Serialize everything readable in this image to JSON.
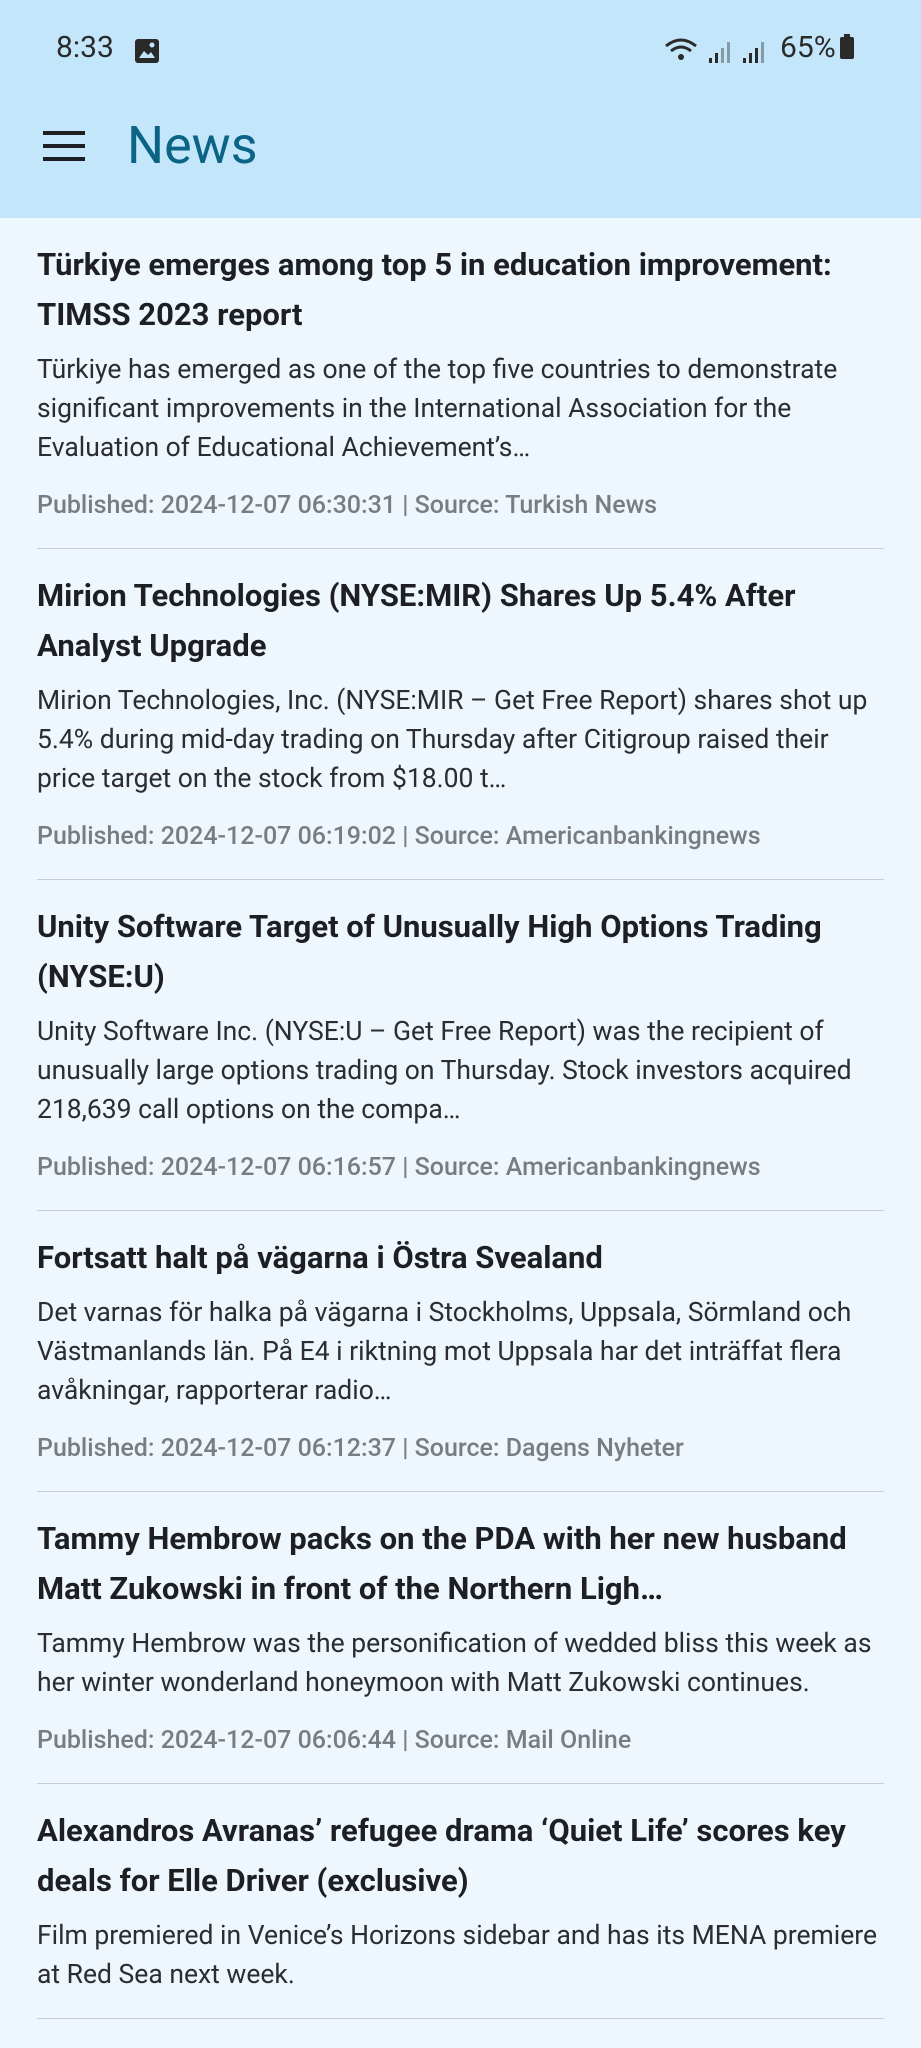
{
  "status_bar": {
    "time": "8:33",
    "battery": "65%"
  },
  "app_bar": {
    "title": "News"
  },
  "articles": [
    {
      "title": "Türkiye emerges among top 5 in education improvement: TIMSS 2023 report",
      "description": "Türkiye has emerged as one of the top five countries to demonstrate significant improvements in the International Association for the Evaluation of Educational Achievement’s…",
      "meta": "Published: 2024-12-07 06:30:31 | Source: Turkish News"
    },
    {
      "title": "Mirion Technologies (NYSE:MIR) Shares Up 5.4% After Analyst Upgrade",
      "description": "Mirion Technologies, Inc. (NYSE:MIR – Get Free Report) shares shot up 5.4% during mid-day trading on Thursday after Citigroup raised their price target on the stock from $18.00 t…",
      "meta": "Published: 2024-12-07 06:19:02 | Source: Americanbankingnews"
    },
    {
      "title": "Unity Software Target of Unusually High Options Trading (NYSE:U)",
      "description": "Unity Software Inc. (NYSE:U – Get Free Report) was the recipient of unusually large options trading on Thursday. Stock investors acquired 218,639 call options on the compa…",
      "meta": "Published: 2024-12-07 06:16:57 | Source: Americanbankingnews"
    },
    {
      "title": "Fortsatt halt på vägarna i Östra Svealand",
      "description": "Det varnas för halka på vägarna i Stockholms, Uppsala, Sörmland och Västmanlands län. På E4 i riktning mot Uppsala har det inträffat flera avåkningar, rapporterar radio…",
      "meta": "Published: 2024-12-07 06:12:37 | Source: Dagens Nyheter"
    },
    {
      "title": "Tammy Hembrow packs on the PDA with her new husband Matt Zukowski in front of the Northern Ligh…",
      "description": "Tammy Hembrow was the personification of wedded bliss this week as her winter wonderland honeymoon with Matt Zukowski continues.",
      "meta": "Published: 2024-12-07 06:06:44 | Source: Mail Online"
    },
    {
      "title": "Alexandros Avranas’ refugee drama ‘Quiet Life’ scores key deals for Elle Driver (exclusive)",
      "description": "Film premiered in Venice’s Horizons sidebar and has its MENA premiere at Red Sea next week."
    }
  ]
}
